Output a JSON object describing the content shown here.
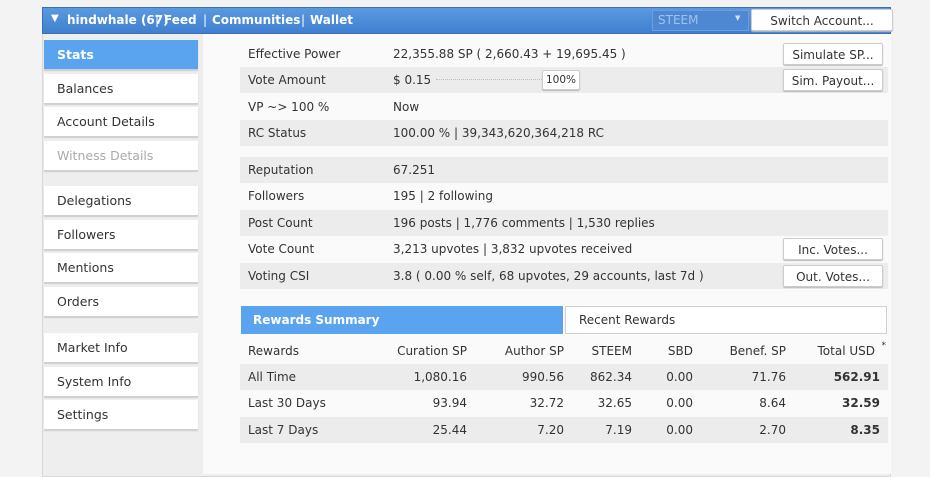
{
  "header": {
    "account": "hindwhale (67)",
    "links": [
      "Feed",
      "Communities",
      "Wallet"
    ],
    "currency": "STEEM",
    "switch_button": "Switch Account..."
  },
  "sidebar": {
    "groups": [
      [
        {
          "label": "Stats",
          "active": true
        },
        {
          "label": "Balances"
        },
        {
          "label": "Account Details"
        },
        {
          "label": "Witness Details",
          "disabled": true
        }
      ],
      [
        {
          "label": "Delegations"
        },
        {
          "label": "Followers"
        },
        {
          "label": "Mentions"
        },
        {
          "label": "Orders"
        }
      ],
      [
        {
          "label": "Market Info"
        },
        {
          "label": "System Info"
        },
        {
          "label": "Settings"
        }
      ]
    ]
  },
  "stats": {
    "sections": [
      [
        {
          "label": "Effective Power",
          "value": "22,355.88 SP ( 2,660.43 + 19,695.45 )",
          "button": "Simulate SP..."
        },
        {
          "label": "Vote Amount",
          "value": "$ 0.15",
          "slider": "100%",
          "button": "Sim. Payout..."
        },
        {
          "label": "VP ~> 100 %",
          "value": "Now"
        },
        {
          "label": "RC Status",
          "value": "100.00 % | 39,343,620,364,218 RC"
        }
      ],
      [
        {
          "label": "Reputation",
          "value": "67.251"
        },
        {
          "label": "Followers",
          "value": "195 | 2 following"
        },
        {
          "label": "Post Count",
          "value": "196 posts | 1,776 comments | 1,530 replies"
        },
        {
          "label": "Vote Count",
          "value": "3,213 upvotes | 3,832 upvotes received",
          "button": "Inc. Votes..."
        },
        {
          "label": "Voting CSI",
          "value": "3.8 ( 0.00 % self, 68 upvotes, 29 accounts, last 7d )",
          "button": "Out. Votes..."
        }
      ]
    ]
  },
  "rewards": {
    "tabs": [
      "Rewards Summary",
      "Recent Rewards"
    ],
    "columns": [
      "Rewards",
      "Curation SP",
      "Author SP",
      "STEEM",
      "SBD",
      "Benef. SP",
      "Total USD"
    ],
    "footnote_mark": "*",
    "rows": [
      [
        "All Time",
        "1,080.16",
        "990.56",
        "862.34",
        "0.00",
        "71.76",
        "562.91"
      ],
      [
        "Last 30 Days",
        "93.94",
        "32.72",
        "32.65",
        "0.00",
        "8.64",
        "32.59"
      ],
      [
        "Last 7 Days",
        "25.44",
        "7.20",
        "7.19",
        "0.00",
        "2.70",
        "8.35"
      ]
    ]
  }
}
